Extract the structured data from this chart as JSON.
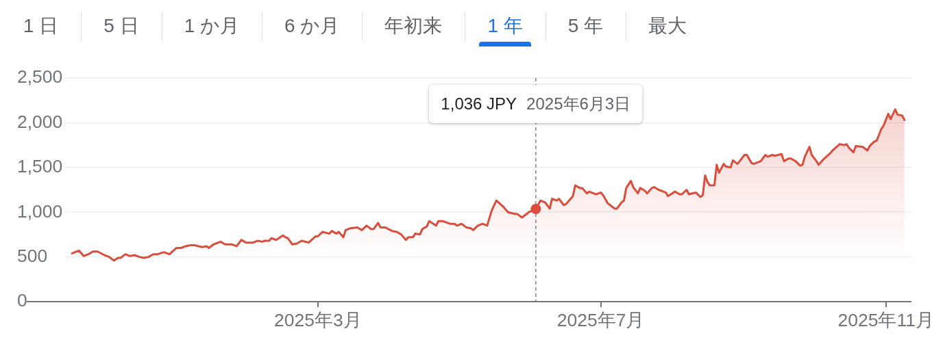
{
  "chart_data": {
    "type": "area",
    "annotations": [
      "1 日",
      "5 日",
      "1 か月",
      "6 か月",
      "年初来",
      "1 年",
      "5 年",
      "最大",
      "1,036 JPY",
      "2025年6月3日"
    ],
    "x": [
      "2024-11-15",
      "2024-11-18",
      "2024-11-20",
      "2024-11-22",
      "2024-11-24",
      "2024-11-26",
      "2024-11-29",
      "2024-12-01",
      "2024-12-03",
      "2024-12-05",
      "2024-12-06",
      "2024-12-08",
      "2024-12-10",
      "2024-12-12",
      "2024-12-14",
      "2024-12-16",
      "2024-12-18",
      "2024-12-20",
      "2024-12-22",
      "2024-12-24",
      "2024-12-25",
      "2024-12-27",
      "2024-12-30",
      "2025-01-01",
      "2025-01-03",
      "2025-01-05",
      "2025-01-07",
      "2025-01-10",
      "2025-01-12",
      "2025-01-13",
      "2025-01-15",
      "2025-01-18",
      "2025-01-20",
      "2025-01-23",
      "2025-01-25",
      "2025-01-27",
      "2025-01-29",
      "2025-02-01",
      "2025-02-03",
      "2025-02-05",
      "2025-02-06",
      "2025-02-08",
      "2025-02-09",
      "2025-02-11",
      "2025-02-14",
      "2025-02-15",
      "2025-02-16",
      "2025-02-18",
      "2025-02-20",
      "2025-02-22",
      "2025-02-25",
      "2025-02-28",
      "2025-03-01",
      "2025-03-03",
      "2025-03-06",
      "2025-03-07",
      "2025-03-09",
      "2025-03-10",
      "2025-03-12",
      "2025-03-13",
      "2025-03-15",
      "2025-03-18",
      "2025-03-20",
      "2025-03-22",
      "2025-03-24",
      "2025-03-25",
      "2025-03-27",
      "2025-03-28",
      "2025-03-30",
      "2025-04-02",
      "2025-04-04",
      "2025-04-06",
      "2025-04-08",
      "2025-04-09",
      "2025-04-11",
      "2025-04-12",
      "2025-04-14",
      "2025-04-15",
      "2025-04-17",
      "2025-04-18",
      "2025-04-21",
      "2025-04-22",
      "2025-04-24",
      "2025-04-27",
      "2025-04-29",
      "2025-04-30",
      "2025-05-02",
      "2025-05-04",
      "2025-05-06",
      "2025-05-07",
      "2025-05-09",
      "2025-05-11",
      "2025-05-13",
      "2025-05-15",
      "2025-05-17",
      "2025-05-20",
      "2025-05-22",
      "2025-05-25",
      "2025-05-26",
      "2025-05-28",
      "2025-05-31",
      "2025-06-03",
      "2025-06-05",
      "2025-06-07",
      "2025-06-09",
      "2025-06-10",
      "2025-06-12",
      "2025-06-13",
      "2025-06-15",
      "2025-06-16",
      "2025-06-19",
      "2025-06-20",
      "2025-06-22",
      "2025-06-23",
      "2025-06-25",
      "2025-06-26",
      "2025-06-29",
      "2025-07-01",
      "2025-07-02",
      "2025-07-04",
      "2025-07-05",
      "2025-07-07",
      "2025-07-08",
      "2025-07-10",
      "2025-07-11",
      "2025-07-12",
      "2025-07-14",
      "2025-07-15",
      "2025-07-17",
      "2025-07-18",
      "2025-07-20",
      "2025-07-21",
      "2025-07-23",
      "2025-07-24",
      "2025-07-26",
      "2025-07-29",
      "2025-07-30",
      "2025-08-02",
      "2025-08-04",
      "2025-08-05",
      "2025-08-07",
      "2025-08-08",
      "2025-08-11",
      "2025-08-13",
      "2025-08-14",
      "2025-08-15",
      "2025-08-16",
      "2025-08-17",
      "2025-08-19",
      "2025-08-20",
      "2025-08-21",
      "2025-08-23",
      "2025-08-24",
      "2025-08-26",
      "2025-08-27",
      "2025-08-29",
      "2025-09-01",
      "2025-09-02",
      "2025-09-04",
      "2025-09-05",
      "2025-09-08",
      "2025-09-10",
      "2025-09-11",
      "2025-09-13",
      "2025-09-14",
      "2025-09-17",
      "2025-09-18",
      "2025-09-20",
      "2025-09-21",
      "2025-09-23",
      "2025-09-25",
      "2025-09-26",
      "2025-09-27",
      "2025-09-29",
      "2025-09-30",
      "2025-10-02",
      "2025-10-03",
      "2025-10-05",
      "2025-10-08",
      "2025-10-09",
      "2025-10-12",
      "2025-10-14",
      "2025-10-15",
      "2025-10-16",
      "2025-10-18",
      "2025-10-19",
      "2025-10-22",
      "2025-10-24",
      "2025-10-25",
      "2025-10-27",
      "2025-10-28",
      "2025-10-30",
      "2025-10-31",
      "2025-11-02",
      "2025-11-03",
      "2025-11-05",
      "2025-11-06",
      "2025-11-08",
      "2025-11-09"
    ],
    "series": [
      {
        "color": "#da4d3c",
        "values": [
          540,
          570,
          510,
          530,
          560,
          560,
          520,
          500,
          460,
          490,
          490,
          530,
          510,
          520,
          500,
          490,
          500,
          530,
          530,
          550,
          550,
          530,
          600,
          600,
          620,
          630,
          630,
          610,
          620,
          600,
          640,
          670,
          640,
          640,
          620,
          690,
          660,
          660,
          680,
          670,
          680,
          680,
          710,
          690,
          740,
          720,
          710,
          640,
          650,
          680,
          660,
          730,
          730,
          780,
          760,
          790,
          760,
          780,
          720,
          800,
          820,
          830,
          800,
          850,
          810,
          810,
          880,
          830,
          830,
          790,
          780,
          750,
          690,
          720,
          720,
          760,
          750,
          810,
          840,
          900,
          850,
          900,
          900,
          870,
          870,
          850,
          870,
          830,
          820,
          800,
          850,
          870,
          850,
          1020,
          1130,
          1060,
          1000,
          980,
          980,
          940,
          1000,
          1036,
          1130,
          1110,
          1040,
          1150,
          1130,
          1150,
          1080,
          1090,
          1180,
          1300,
          1270,
          1270,
          1210,
          1230,
          1200,
          1220,
          1190,
          1100,
          1080,
          1040,
          1040,
          1110,
          1130,
          1270,
          1350,
          1280,
          1210,
          1270,
          1240,
          1210,
          1270,
          1280,
          1250,
          1220,
          1180,
          1230,
          1200,
          1200,
          1250,
          1200,
          1220,
          1170,
          1190,
          1410,
          1340,
          1300,
          1300,
          1530,
          1440,
          1540,
          1510,
          1500,
          1580,
          1540,
          1640,
          1640,
          1550,
          1540,
          1570,
          1640,
          1620,
          1640,
          1630,
          1650,
          1570,
          1600,
          1600,
          1570,
          1520,
          1530,
          1620,
          1730,
          1640,
          1570,
          1530,
          1590,
          1660,
          1690,
          1760,
          1750,
          1760,
          1720,
          1670,
          1740,
          1730,
          1690,
          1740,
          1790,
          1800,
          1930,
          1970,
          2100,
          2040,
          2150,
          2090,
          2080,
          2030
        ]
      },
      {
        "type": "scatter",
        "x": [
          "2025-06-03"
        ],
        "values": [
          1036
        ],
        "color": "#da4d3c",
        "marker": "circle"
      }
    ],
    "xlim": [
      "2024-11-12",
      "2025-11-12"
    ],
    "xticks": [
      {
        "value": "2025-03-01",
        "label": "2025年3月"
      },
      {
        "value": "2025-07-01",
        "label": "2025年7月"
      },
      {
        "value": "2025-11-01",
        "label": "2025年11月"
      }
    ],
    "ylim": [
      0,
      2500
    ],
    "yticks": [
      0,
      500,
      {
        "value": 1000,
        "label": "1,000"
      },
      {
        "value": 1500,
        "label": "1,500"
      },
      {
        "value": 2000,
        "label": "2,000"
      },
      {
        "value": 2500,
        "label": "2,500"
      }
    ],
    "ref_lines": [
      {
        "axis": "x",
        "value": "2025-06-03",
        "color": "#80868b",
        "line_style": "dashed"
      }
    ],
    "grid": "y",
    "legend": false
  }
}
